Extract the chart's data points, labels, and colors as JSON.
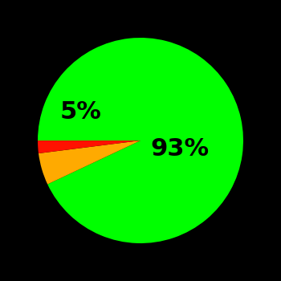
{
  "slices": [
    93,
    5,
    2
  ],
  "colors": [
    "#00ff00",
    "#ffaa00",
    "#ff1100"
  ],
  "background_color": "#000000",
  "text_color": "#000000",
  "font_size": 22,
  "startangle": 180,
  "fig_size": [
    3.5,
    3.5
  ],
  "dpi": 100
}
